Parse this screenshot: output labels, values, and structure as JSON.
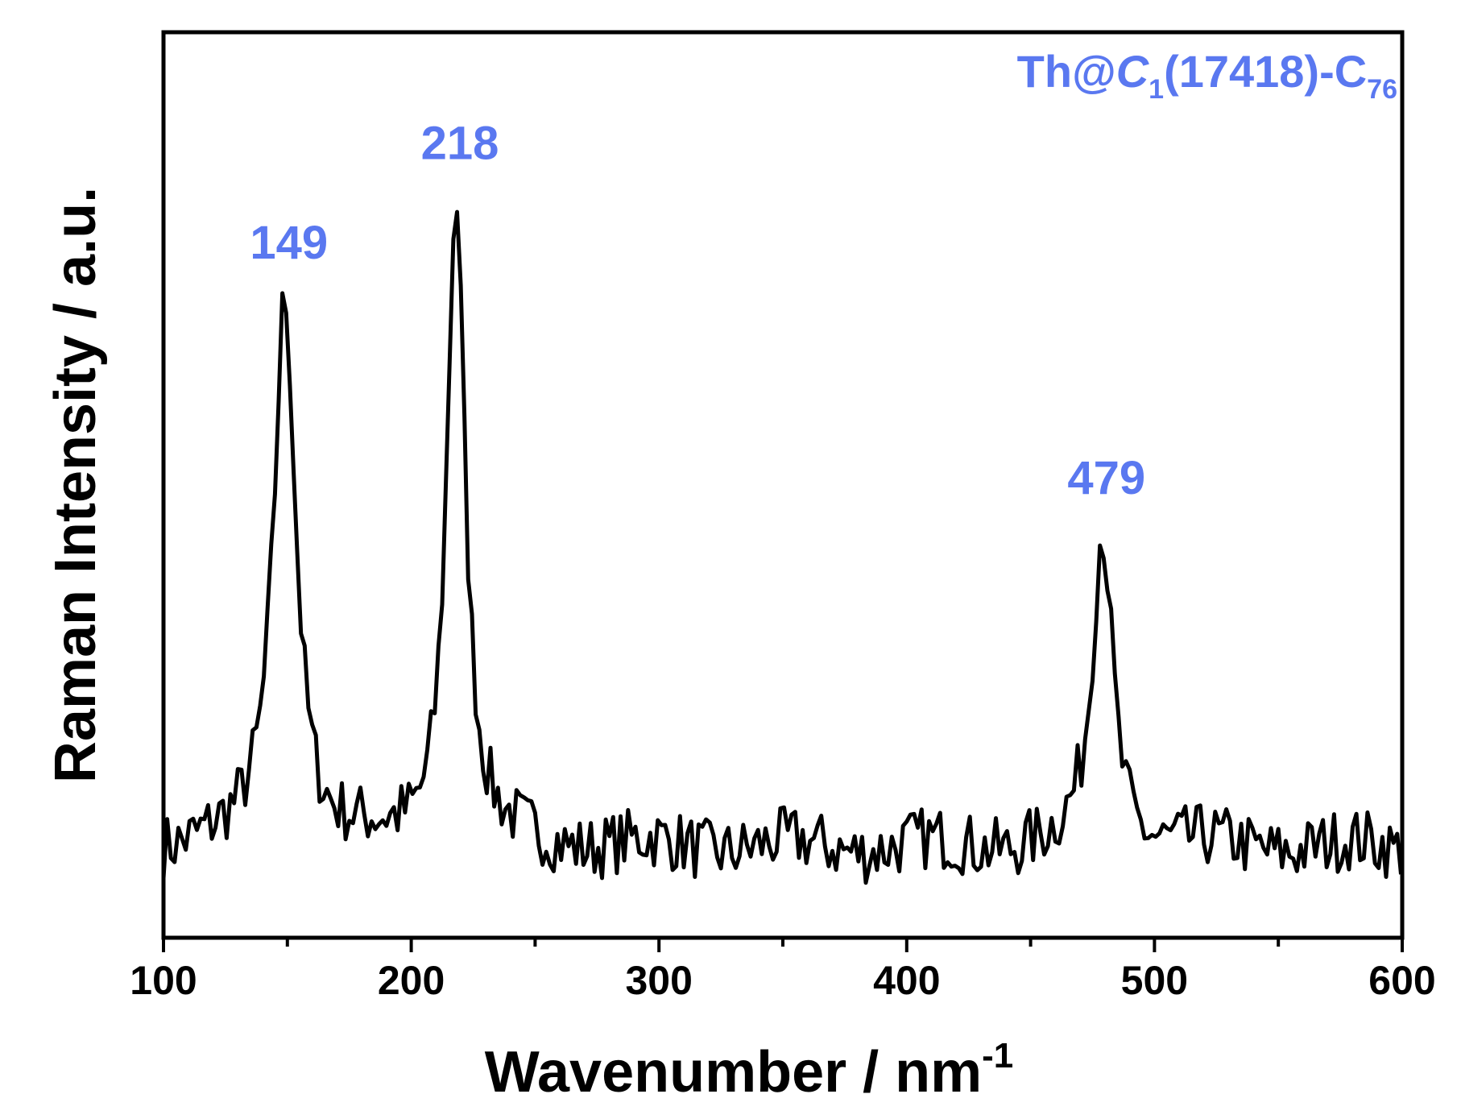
{
  "chart_data": {
    "type": "line",
    "title": "",
    "compound_label": {
      "base": "Th@",
      "c1": "C",
      "c1_sub": "1",
      "mid": "(17418)-C",
      "c76_sub": "76"
    },
    "xlabel": "Wavenumber / nm",
    "xlabel_sup": "-1",
    "ylabel": "Raman Intensity / a.u.",
    "xlim": [
      100,
      600
    ],
    "ylim": [
      0,
      1
    ],
    "x_ticks": [
      100,
      200,
      300,
      400,
      500,
      600
    ],
    "x_tick_labels": [
      "100",
      "200",
      "300",
      "400",
      "500",
      "600"
    ],
    "y_ticks_shown": false,
    "grid": false,
    "line_color": "#000000",
    "label_color": "#5a78f0",
    "peaks": [
      {
        "x": 149,
        "label": "149",
        "height": 0.71
      },
      {
        "x": 218,
        "label": "218",
        "height": 0.82
      },
      {
        "x": 479,
        "label": "479",
        "height": 0.45
      }
    ],
    "baseline_level": 0.1
  }
}
